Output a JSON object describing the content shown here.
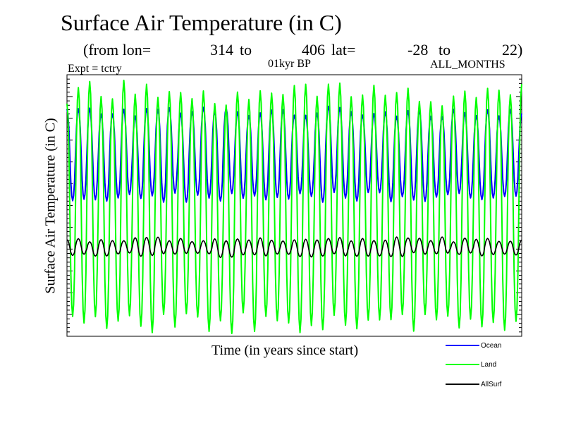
{
  "header": {
    "title": "Surface Air Temperature (in C)",
    "from_lon_label": "(from lon=",
    "lon_start": "314",
    "to_label_1": "to",
    "lon_end": "406",
    "lat_label": "lat=",
    "lat_start": "-28",
    "to_label_2": "to",
    "lat_end": "22)",
    "expt": "Expt = tctry",
    "period": "01kyr BP",
    "months": "ALL_MONTHS"
  },
  "chart_data": {
    "type": "line",
    "title": "Surface Air Temperature (in C)",
    "xlabel": "Time (in years since start)",
    "ylabel": "Surface Air Temperature (in C)",
    "cycles": 40,
    "samples_per_cycle": 12,
    "ylim": [
      0,
      100
    ],
    "series": [
      {
        "name": "Ocean",
        "color": "#0000ff",
        "min": 53,
        "max": 87,
        "peak_min": 84,
        "peak_max": 88,
        "trough_min": 51,
        "trough_max": 55
      },
      {
        "name": "Land",
        "color": "#00ff00",
        "min": 3,
        "max": 97,
        "peak_min": 88,
        "peak_max": 98,
        "trough_min": 1,
        "trough_max": 9
      },
      {
        "name": "AllSurf",
        "color": "#000000",
        "min": 31,
        "max": 37,
        "peak_min": 36,
        "peak_max": 38,
        "trough_min": 30,
        "trough_max": 32
      }
    ]
  },
  "legend": {
    "items": [
      {
        "label": "Ocean",
        "color": "#0000ff"
      },
      {
        "label": "Land",
        "color": "#00ff00"
      },
      {
        "label": "AllSurf",
        "color": "#000000"
      }
    ]
  }
}
